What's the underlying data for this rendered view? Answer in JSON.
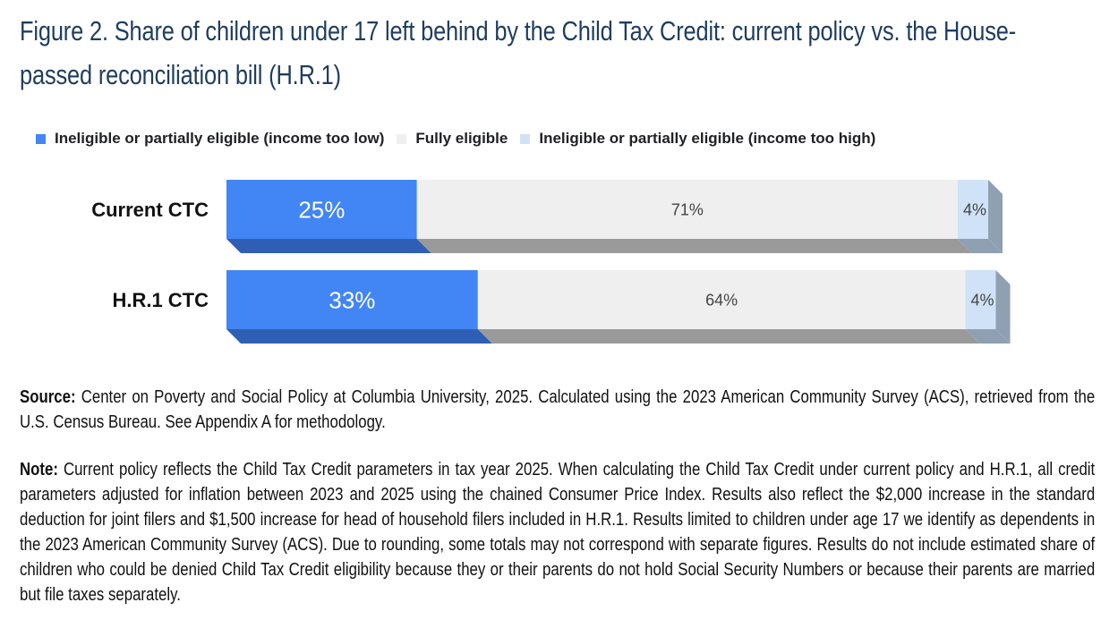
{
  "title": "Figure 2. Share of children under 17 left behind by the Child Tax Credit: current policy vs. the House-passed reconciliation bill (H.R.1)",
  "colors": {
    "low": "#4285f4",
    "low_dark": "#2f5fb4",
    "full": "#efefef",
    "full_dark": "#9a9a9a",
    "high": "#cfe2f7",
    "high_dark": "#8fa0b2",
    "title": "#1f3d5e"
  },
  "chart_data": {
    "type": "bar",
    "orientation": "horizontal",
    "stacked": true,
    "categories": [
      "Current CTC",
      "H.R.1 CTC"
    ],
    "series": [
      {
        "name": "Ineligible or partially eligible (income too low)",
        "values": [
          25,
          33
        ],
        "labels": [
          "25%",
          "33%"
        ]
      },
      {
        "name": "Fully eligible",
        "values": [
          71,
          64
        ],
        "labels": [
          "71%",
          "64%"
        ]
      },
      {
        "name": "Ineligible or partially eligible (income too high)",
        "values": [
          4,
          4
        ],
        "labels": [
          "4%",
          "4%"
        ]
      }
    ],
    "xlim": [
      0,
      100
    ],
    "legend_position": "top",
    "grid": false
  },
  "notes": {
    "source_label": "Source:",
    "source_text": " Center on Poverty and Social Policy at Columbia University, 2025. Calculated using the 2023 American Community Survey (ACS), retrieved from the U.S. Census Bureau. See Appendix A for methodology.",
    "note_label": "Note:",
    "note_text": " Current policy reflects the Child Tax Credit parameters in tax year 2025. When calculating the Child Tax Credit under current policy and H.R.1, all credit parameters adjusted for inflation between 2023 and 2025 using the chained Consumer Price Index.  Results also reflect the $2,000 increase in the standard deduction for joint filers and $1,500 increase for head of household filers included in H.R.1. Results limited to children under age 17 we identify as dependents in the 2023 American Community Survey (ACS). Due to rounding, some totals may not correspond with separate figures. Results do not include estimated share of children who could be denied Child Tax Credit eligibility because they or their parents do not hold Social Security Numbers or because their parents are married but file taxes separately."
  }
}
